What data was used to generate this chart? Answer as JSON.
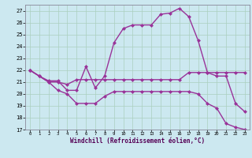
{
  "xlabel": "Windchill (Refroidissement éolien,°C)",
  "bg_color": "#cce8f0",
  "grid_color": "#aacfbf",
  "line_color": "#993399",
  "xlim": [
    -0.5,
    23.5
  ],
  "ylim": [
    17,
    27.5
  ],
  "yticks": [
    17,
    18,
    19,
    20,
    21,
    22,
    23,
    24,
    25,
    26,
    27
  ],
  "xticks": [
    0,
    1,
    2,
    3,
    4,
    5,
    6,
    7,
    8,
    9,
    10,
    11,
    12,
    13,
    14,
    15,
    16,
    17,
    18,
    19,
    20,
    21,
    22,
    23
  ],
  "line1_x": [
    0,
    1,
    2,
    3,
    4,
    5,
    6,
    7,
    8,
    9,
    10,
    11,
    12,
    13,
    14,
    15,
    16,
    17,
    18,
    19,
    20,
    21,
    22,
    23
  ],
  "line1_y": [
    22,
    21.5,
    21.1,
    21.1,
    20.3,
    20.3,
    22.3,
    20.5,
    21.5,
    24.3,
    25.5,
    25.8,
    25.8,
    25.8,
    26.7,
    26.8,
    27.2,
    26.5,
    24.5,
    21.8,
    21.5,
    21.5,
    19.2,
    18.5
  ],
  "line2_x": [
    0,
    1,
    2,
    3,
    4,
    5,
    6,
    7,
    8,
    9,
    10,
    11,
    12,
    13,
    14,
    15,
    16,
    17,
    18,
    19,
    20,
    21,
    22,
    23
  ],
  "line2_y": [
    22,
    21.5,
    21.0,
    21.0,
    20.8,
    21.2,
    21.2,
    21.2,
    21.2,
    21.2,
    21.2,
    21.2,
    21.2,
    21.2,
    21.2,
    21.2,
    21.2,
    21.8,
    21.8,
    21.8,
    21.8,
    21.8,
    21.8,
    21.8
  ],
  "line3_x": [
    0,
    1,
    2,
    3,
    4,
    5,
    6,
    7,
    8,
    9,
    10,
    11,
    12,
    13,
    14,
    15,
    16,
    17,
    18,
    19,
    20,
    21,
    22,
    23
  ],
  "line3_y": [
    22,
    21.5,
    21.0,
    20.3,
    20.0,
    19.2,
    19.2,
    19.2,
    19.8,
    20.2,
    20.2,
    20.2,
    20.2,
    20.2,
    20.2,
    20.2,
    20.2,
    20.2,
    20.0,
    19.2,
    18.8,
    17.5,
    17.2,
    17.0
  ],
  "marker": "D",
  "markersize": 2.5,
  "linewidth": 1.0
}
